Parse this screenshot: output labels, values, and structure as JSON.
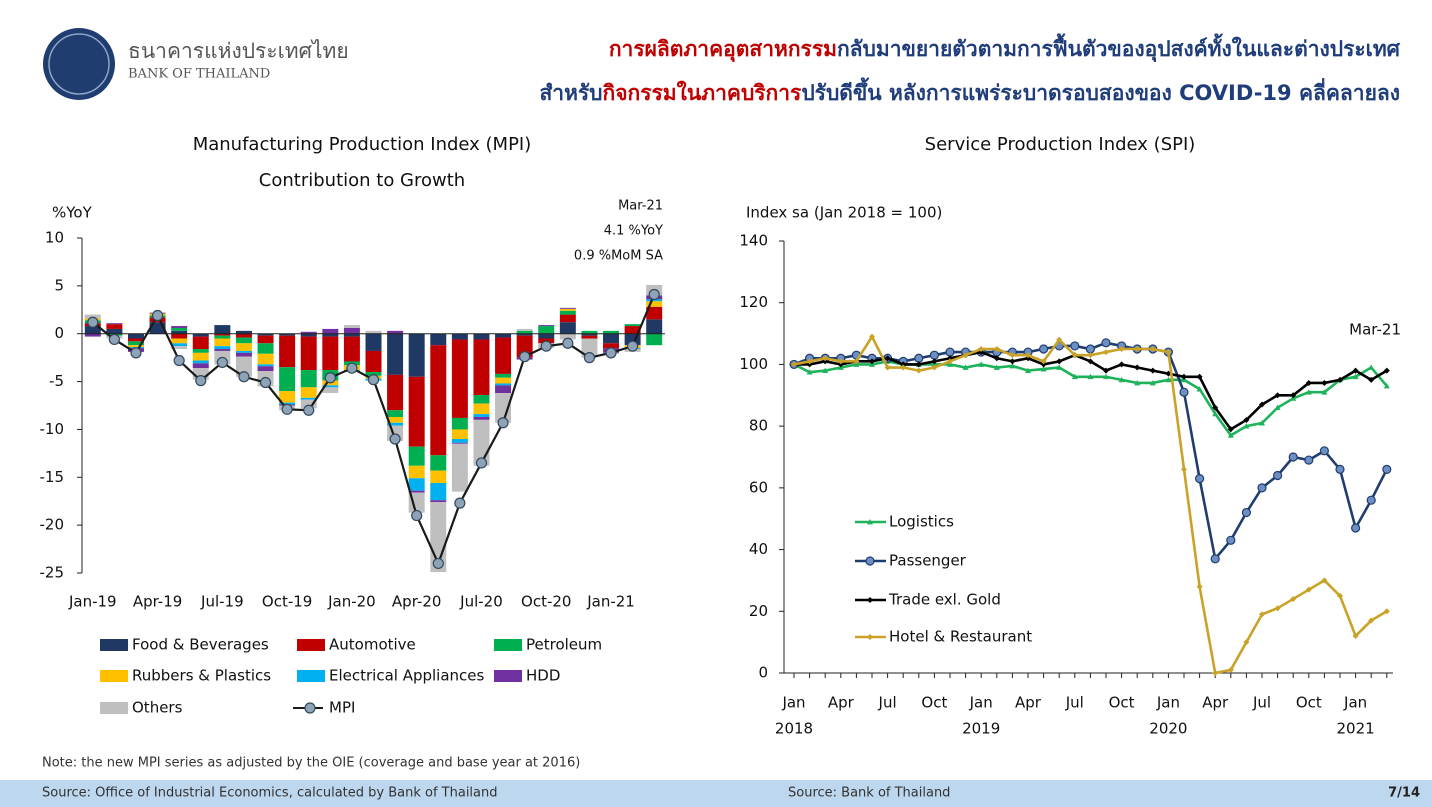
{
  "header": {
    "org_th": "ธนาคารแห่งประเทศไทย",
    "org_en": "BANK OF THAILAND",
    "title_lines": [
      [
        {
          "text": "การผลิตภาคอุตสาหกรรม",
          "color": "#c00000"
        },
        {
          "text": "กลับมาขยายตัวตามการฟื้นตัวของอุปสงค์ทั้งในและต่างประเทศ",
          "color": "#1f3d7a"
        }
      ],
      [
        {
          "text": "สำหรับ",
          "color": "#1f3d7a"
        },
        {
          "text": "กิจกรรมในภาคบริการ",
          "color": "#c00000"
        },
        {
          "text": "ปรับดีขึ้น หลังการแพร่ระบาดรอบสองของ COVID-19 คลี่คลายลง",
          "color": "#1f3d7a"
        }
      ]
    ]
  },
  "chart_data": [
    {
      "type": "bar",
      "title": "Manufacturing Production Index (MPI)",
      "subtitle": "Contribution to Growth",
      "y_label": "%YoY",
      "annotations": [
        "Mar-21",
        "4.1 %YoY",
        "0.9 %MoM SA"
      ],
      "categories": [
        "Jan-19",
        null,
        null,
        "Apr-19",
        null,
        null,
        "Jul-19",
        null,
        null,
        "Oct-19",
        null,
        null,
        "Jan-20",
        null,
        null,
        "Apr-20",
        null,
        null,
        "Jul-20",
        null,
        null,
        "Oct-20",
        null,
        null,
        "Jan-21",
        null,
        null
      ],
      "ylim": [
        -25,
        10
      ],
      "yticks": [
        10,
        5,
        0,
        -5,
        -10,
        -15,
        -20,
        -25
      ],
      "stacked": true,
      "series": [
        {
          "name": "Food & Beverages",
          "color": "#1f3864",
          "values": [
            0.8,
            0.5,
            -0.5,
            1.2,
            0.3,
            -0.3,
            0.9,
            0.3,
            -0.2,
            -0.2,
            -0.3,
            -0.3,
            -0.3,
            -1.8,
            -4.3,
            -4.5,
            -1.2,
            -0.6,
            -0.6,
            -0.4,
            -0.2,
            -0.5,
            1.2,
            -0.2,
            -1.0,
            -1.2,
            1.5
          ]
        },
        {
          "name": "Automotive",
          "color": "#c00000",
          "values": [
            0.3,
            0.5,
            -0.3,
            0.5,
            -0.5,
            -1.3,
            -0.2,
            -0.4,
            -0.8,
            -3.3,
            -3.5,
            -3.5,
            -2.6,
            -2.2,
            -3.7,
            -7.3,
            -11.5,
            -8.2,
            -5.8,
            -3.8,
            -2.3,
            -0.5,
            0.8,
            -0.3,
            -0.5,
            0.8,
            1.3
          ]
        },
        {
          "name": "Petroleum",
          "color": "#00b050",
          "values": [
            0.3,
            -0.2,
            -0.4,
            0.2,
            0.3,
            -0.4,
            -0.3,
            -0.6,
            -1.1,
            -2.5,
            -1.8,
            -1.1,
            -0.4,
            -0.4,
            -0.7,
            -2.0,
            -1.6,
            -1.2,
            -0.9,
            -0.4,
            0.3,
            0.8,
            0.4,
            0.3,
            0.3,
            0.2,
            -1.2
          ]
        },
        {
          "name": "Rubbers & Plastics",
          "color": "#ffc000",
          "values": [
            0.2,
            0,
            -0.2,
            0.2,
            -0.5,
            -0.8,
            -0.8,
            -0.8,
            -1.1,
            -1.2,
            -1.1,
            -0.5,
            -0.5,
            -0.3,
            -0.6,
            -1.3,
            -1.3,
            -1.0,
            -1.1,
            -0.6,
            0,
            0,
            0.2,
            0,
            0,
            -0.3,
            0.6
          ]
        },
        {
          "name": "Electrical Appliances",
          "color": "#00b0f0",
          "values": [
            0,
            0,
            -0.1,
            0,
            -0.3,
            -0.3,
            -0.3,
            -0.2,
            -0.2,
            -0.2,
            -0.2,
            -0.2,
            -0.2,
            -0.2,
            -0.3,
            -1.3,
            -1.8,
            -0.4,
            -0.3,
            -0.2,
            0,
            0,
            0,
            0,
            0,
            -0.1,
            0.2
          ]
        },
        {
          "name": "HDD",
          "color": "#7030a0",
          "values": [
            -0.3,
            0.1,
            -0.4,
            0.1,
            0.2,
            -0.5,
            -0.2,
            -0.4,
            -0.5,
            -0.1,
            0.2,
            0.5,
            0.6,
            0,
            0.3,
            -0.2,
            -0.2,
            -0.1,
            -0.3,
            -0.8,
            -0.2,
            0.1,
            0.1,
            0,
            -0.5,
            0,
            0.4
          ]
        },
        {
          "name": "Others",
          "color": "#bfbfbf",
          "values": [
            0.4,
            -0.3,
            0,
            0,
            -0.3,
            -1.2,
            -1.4,
            -2.1,
            -1.6,
            -0.5,
            -0.9,
            -0.6,
            0.3,
            0.3,
            -1.6,
            -2.1,
            -7.3,
            -5.0,
            -4.8,
            -3.1,
            0.2,
            -0.5,
            -0.6,
            -2.0,
            -0.1,
            -0.3,
            1.1
          ]
        },
        {
          "name": "MPI",
          "type": "line",
          "color": "#1a1a1a",
          "marker": "circle",
          "marker_color": "#8ea3b8",
          "values": [
            1.2,
            -0.6,
            -2.0,
            1.9,
            -2.8,
            -4.9,
            -3.0,
            -4.5,
            -5.1,
            -7.9,
            -8.0,
            -4.6,
            -3.6,
            -4.8,
            -11.0,
            -19.0,
            -24.0,
            -17.7,
            -13.5,
            -9.3,
            -2.4,
            -1.3,
            -1.0,
            -2.5,
            -2.0,
            -1.3,
            4.1
          ]
        }
      ]
    },
    {
      "type": "line",
      "title": "Service Production Index (SPI)",
      "y_label": "Index sa (Jan 2018 = 100)",
      "annotations": [
        "Mar-21"
      ],
      "categories": [
        "Jan",
        null,
        null,
        "Apr",
        null,
        null,
        "Jul",
        null,
        null,
        "Oct",
        null,
        null,
        "Jan",
        null,
        null,
        "Apr",
        null,
        null,
        "Jul",
        null,
        null,
        "Oct",
        null,
        null,
        "Jan",
        null,
        null,
        "Apr",
        null,
        null,
        "Jul",
        null,
        null,
        "Oct",
        null,
        null,
        "Jan",
        null,
        null
      ],
      "years": [
        "2018",
        null,
        null,
        null,
        null,
        null,
        null,
        null,
        null,
        null,
        null,
        null,
        "2019",
        null,
        null,
        null,
        null,
        null,
        null,
        null,
        null,
        null,
        null,
        null,
        "2020",
        null,
        null,
        null,
        null,
        null,
        null,
        null,
        null,
        null,
        null,
        null,
        "2021",
        null,
        null
      ],
      "ylim": [
        0,
        140
      ],
      "yticks": [
        0,
        20,
        40,
        60,
        80,
        100,
        120,
        140
      ],
      "series": [
        {
          "name": "Logistics",
          "color": "#1eb35a",
          "marker": "triangle",
          "values": [
            100,
            97.5,
            98,
            99,
            100,
            100,
            101,
            100,
            100,
            100,
            100,
            99,
            100,
            99,
            99.5,
            98,
            98.5,
            99,
            96,
            96,
            96,
            95,
            94,
            94,
            95,
            95,
            92,
            84,
            77,
            80,
            81,
            86,
            89,
            91,
            91,
            95,
            96,
            99,
            93
          ]
        },
        {
          "name": "Passenger",
          "color": "#1f3d6e",
          "marker": "circle",
          "values": [
            100,
            102,
            102,
            102,
            103,
            102,
            102,
            101,
            102,
            103,
            104,
            104,
            104,
            104,
            104,
            104,
            105,
            106,
            106,
            105,
            107,
            106,
            105,
            105,
            104,
            91,
            63,
            37,
            43,
            52,
            60,
            64,
            70,
            69,
            72,
            66,
            47,
            56,
            66
          ]
        },
        {
          "name": "Trade exl. Gold",
          "color": "#000000",
          "marker": "diamond",
          "values": [
            100,
            100,
            101,
            100,
            101,
            101,
            102,
            100,
            100,
            101,
            102,
            103,
            104,
            102,
            101,
            102,
            100,
            101,
            103,
            101,
            98,
            100,
            99,
            98,
            97,
            96,
            96,
            86,
            79,
            82,
            87,
            90,
            90,
            94,
            94,
            95,
            98,
            95,
            98
          ]
        },
        {
          "name": "Hotel & Restaurant",
          "color": "#c9a227",
          "marker": "diamond",
          "values": [
            100,
            101,
            102,
            101,
            101,
            109,
            99,
            99,
            98,
            99,
            101,
            103,
            105,
            105,
            103,
            103,
            101,
            108,
            103,
            103,
            104,
            105,
            105,
            105,
            104,
            66,
            28,
            0,
            1,
            10,
            19,
            21,
            24,
            27,
            30,
            25,
            12,
            17,
            20
          ]
        }
      ]
    }
  ],
  "footer": {
    "note": "Note: the new MPI series as adjusted by the OIE (coverage and base year at 2016)",
    "source_left": "Source: Office of Industrial Economics, calculated by Bank of Thailand",
    "source_right": "Source: Bank of Thailand",
    "page": "7/14"
  }
}
